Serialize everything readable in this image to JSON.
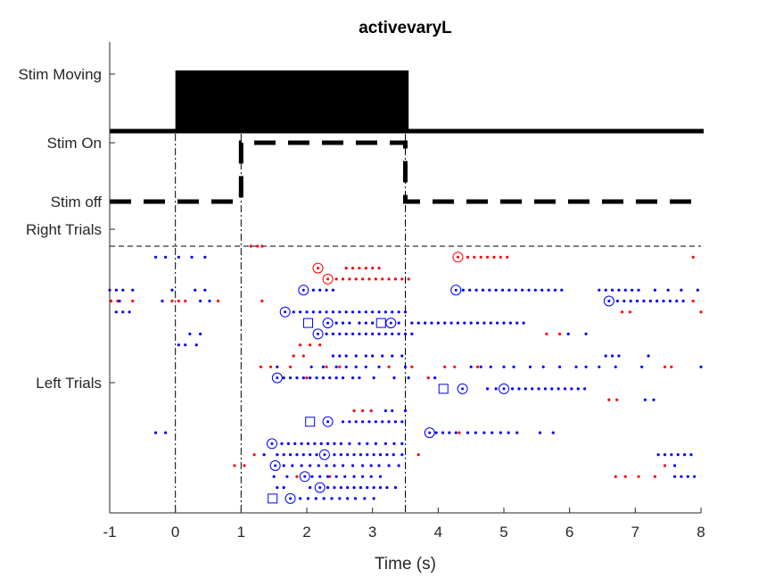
{
  "chart_data": {
    "type": "scatter",
    "title": "activevaryL",
    "xlabel": "Time (s)",
    "ylabel": "",
    "xlim": [
      -1,
      8
    ],
    "x_ticks": [
      -1,
      0,
      1,
      2,
      3,
      4,
      5,
      6,
      7,
      8
    ],
    "y_tick_labels": [
      "Stim Moving",
      "Stim On",
      "Stim off",
      "Right Trials",
      "Left Trials"
    ],
    "grid": false,
    "legend": "none",
    "colors": {
      "left_trial": "#0000ff",
      "right_trial": "#ff0000",
      "stim": "#000000"
    },
    "stim_moving_window": [
      0,
      3.55
    ],
    "stim_on_window": [
      1,
      3.5
    ],
    "event_lines": [
      0,
      1,
      3.5
    ],
    "circled_events": [
      {
        "row": 2,
        "x": 2.17,
        "color": "red"
      },
      {
        "row": 1,
        "x": 4.3,
        "color": "red"
      },
      {
        "row": 3,
        "x": 2.32,
        "color": "red"
      },
      {
        "row": 4,
        "x": 1.95,
        "color": "blue"
      },
      {
        "row": 4,
        "x": 4.27,
        "color": "blue"
      },
      {
        "row": 5,
        "x": 6.6,
        "color": "blue"
      },
      {
        "row": 6,
        "x": 1.67,
        "color": "blue"
      },
      {
        "row": 7,
        "x": 2.32,
        "color": "blue"
      },
      {
        "row": 7,
        "x": 3.28,
        "color": "blue"
      },
      {
        "row": 8,
        "x": 2.17,
        "color": "blue"
      },
      {
        "row": 12,
        "x": 1.55,
        "color": "blue"
      },
      {
        "row": 13,
        "x": 4.37,
        "color": "blue"
      },
      {
        "row": 13,
        "x": 5.0,
        "color": "blue"
      },
      {
        "row": 16,
        "x": 2.32,
        "color": "blue"
      },
      {
        "row": 17,
        "x": 3.87,
        "color": "blue"
      },
      {
        "row": 18,
        "x": 1.47,
        "color": "blue"
      },
      {
        "row": 19,
        "x": 2.27,
        "color": "blue"
      },
      {
        "row": 20,
        "x": 1.52,
        "color": "blue"
      },
      {
        "row": 21,
        "x": 1.97,
        "color": "blue"
      },
      {
        "row": 22,
        "x": 2.2,
        "color": "blue"
      },
      {
        "row": 23,
        "x": 1.75,
        "color": "blue"
      }
    ],
    "square_events": [
      {
        "row": 7,
        "x": 2.02
      },
      {
        "row": 7,
        "x": 3.13
      },
      {
        "row": 13,
        "x": 4.08
      },
      {
        "row": 16,
        "x": 2.05
      },
      {
        "row": 23,
        "x": 1.48
      }
    ],
    "rows": [
      {
        "row": 0,
        "color": "red",
        "x": [
          1.15,
          1.25,
          1.32
        ]
      },
      {
        "row": 1,
        "color": "blue",
        "x": [
          -0.3,
          -0.15,
          0.05,
          0.25,
          0.45
        ]
      },
      {
        "row": 1,
        "color": "red",
        "x": [
          4.45,
          4.55,
          4.65,
          4.75,
          4.85,
          4.95,
          5.05,
          7.88
        ]
      },
      {
        "row": 2,
        "color": "red",
        "x": [
          2.6,
          2.7,
          2.8,
          2.9,
          3.0,
          3.1
        ]
      },
      {
        "row": 3,
        "color": "red",
        "x": [
          2.45,
          2.55,
          2.65,
          2.75,
          2.85,
          2.95,
          3.05,
          3.15,
          3.25,
          3.35,
          3.45,
          3.55
        ]
      },
      {
        "row": 4,
        "color": "blue",
        "x": [
          -1.0,
          -0.9,
          -0.8,
          -0.65,
          -0.05,
          0.3,
          0.45,
          2.1,
          2.2,
          2.3,
          2.4,
          4.38,
          4.48,
          4.58,
          4.68,
          4.78,
          4.88,
          4.98,
          5.08,
          5.18,
          5.28,
          5.38,
          5.48,
          5.58,
          5.68,
          5.78,
          5.88,
          6.45,
          6.55,
          6.65,
          6.75,
          6.85,
          6.95,
          7.05,
          7.3,
          7.5,
          7.7,
          7.95
        ]
      },
      {
        "row": 5,
        "color": "red",
        "x": [
          -0.98,
          -0.88,
          -0.65,
          -0.05,
          0.05,
          0.15,
          0.65,
          1.32,
          7.88
        ]
      },
      {
        "row": 5,
        "color": "blue",
        "x": [
          -0.85,
          -0.2,
          0.38,
          0.52,
          6.73,
          6.83,
          6.93,
          7.03,
          7.13,
          7.23,
          7.33,
          7.43,
          7.53,
          7.63,
          7.73
        ]
      },
      {
        "row": 6,
        "color": "blue",
        "x": [
          1.8,
          1.9,
          2.0,
          2.1,
          2.2,
          2.3,
          2.4,
          2.5,
          2.6,
          2.7,
          2.8,
          2.9,
          3.0,
          3.1,
          3.2,
          3.3,
          3.4,
          3.5
        ]
      },
      {
        "row": 6,
        "color": "red",
        "x": [
          6.8,
          6.92,
          8.0
        ]
      },
      {
        "row": 6,
        "color": "blue",
        "x": [
          -0.9,
          -0.8,
          -0.7
        ]
      },
      {
        "row": 7,
        "color": "blue",
        "x": [
          2.45,
          2.55,
          2.65,
          2.8,
          2.9,
          3.0,
          3.4,
          3.6,
          3.7,
          3.8,
          3.9,
          4.0,
          4.1,
          4.2,
          4.3,
          4.4,
          4.5,
          4.6,
          4.7,
          4.8,
          4.9,
          5.0,
          5.1,
          5.2,
          5.3
        ]
      },
      {
        "row": 8,
        "color": "blue",
        "x": [
          0.22,
          0.38,
          2.3,
          2.4,
          2.5,
          2.6,
          2.7,
          2.8,
          2.9,
          3.0,
          3.1,
          3.2,
          3.3,
          3.4,
          3.5,
          3.6
        ]
      },
      {
        "row": 8,
        "color": "red",
        "x": [
          5.65,
          5.85
        ]
      },
      {
        "row": 8,
        "color": "blue",
        "x": [
          5.98,
          6.25
        ]
      },
      {
        "row": 9,
        "color": "red",
        "x": [
          1.9,
          2.05,
          2.2
        ]
      },
      {
        "row": 9,
        "color": "blue",
        "x": [
          0.05,
          0.15,
          0.32
        ]
      },
      {
        "row": 10,
        "color": "blue",
        "x": [
          2.4,
          2.5,
          2.6,
          2.75,
          2.9,
          3.0,
          3.15,
          3.3,
          3.45,
          6.55,
          6.65,
          6.75,
          7.2
        ]
      },
      {
        "row": 10,
        "color": "red",
        "x": [
          1.8,
          1.95
        ]
      },
      {
        "row": 11,
        "color": "red",
        "x": [
          1.3,
          1.45,
          1.75,
          2.3,
          2.5,
          3.25,
          3.6,
          4.1,
          4.25,
          4.6
        ]
      },
      {
        "row": 11,
        "color": "blue",
        "x": [
          1.55,
          2.07,
          2.25,
          2.45,
          2.6,
          2.75,
          2.9,
          3.1,
          3.5,
          4.5,
          4.65,
          4.8,
          5.0,
          5.15,
          5.4,
          5.6,
          5.85,
          6.1,
          6.25,
          6.45,
          6.7,
          7.1,
          8.0
        ]
      },
      {
        "row": 11,
        "color": "red",
        "x": [
          7.45,
          7.55
        ]
      },
      {
        "row": 12,
        "color": "blue",
        "x": [
          1.65,
          1.75,
          1.85,
          1.95,
          2.05,
          2.15,
          2.25,
          2.35,
          2.45,
          2.55,
          2.7,
          2.8,
          3.02,
          3.33,
          3.55,
          3.95
        ]
      },
      {
        "row": 12,
        "color": "red",
        "x": [
          2.0,
          3.85
        ]
      },
      {
        "row": 13,
        "color": "blue",
        "x": [
          4.75,
          4.88,
          5.13,
          5.23,
          5.33,
          5.43,
          5.53,
          5.63,
          5.73,
          5.83,
          5.93,
          6.03,
          6.13,
          6.23
        ]
      },
      {
        "row": 14,
        "color": "red",
        "x": [
          6.6,
          6.72
        ]
      },
      {
        "row": 14,
        "color": "blue",
        "x": [
          7.15,
          7.28
        ]
      },
      {
        "row": 15,
        "color": "red",
        "x": [
          2.72,
          2.85,
          2.98
        ]
      },
      {
        "row": 15,
        "color": "blue",
        "x": [
          3.2,
          3.3,
          3.5
        ]
      },
      {
        "row": 16,
        "color": "blue",
        "x": [
          2.55,
          2.65,
          2.75,
          2.85,
          2.95,
          3.05,
          3.15,
          3.25,
          3.35,
          3.45
        ]
      },
      {
        "row": 17,
        "color": "blue",
        "x": [
          -0.3,
          -0.15,
          3.97,
          4.07,
          4.17,
          4.27,
          4.45,
          4.57,
          4.7,
          4.82,
          4.95,
          5.07,
          5.2,
          5.55,
          5.75
        ]
      },
      {
        "row": 17,
        "color": "red",
        "x": [
          4.32
        ]
      },
      {
        "row": 18,
        "color": "blue",
        "x": [
          1.62,
          1.72,
          1.82,
          1.92,
          2.02,
          2.12,
          2.22,
          2.32,
          2.42,
          2.52,
          2.65,
          2.8,
          2.92,
          3.05,
          3.2,
          3.33,
          3.45
        ]
      },
      {
        "row": 19,
        "color": "red",
        "x": [
          1.2,
          3.7
        ]
      },
      {
        "row": 19,
        "color": "blue",
        "x": [
          1.35,
          1.55,
          1.65,
          1.75,
          1.85,
          1.95,
          2.05,
          2.15,
          2.42,
          2.52,
          2.62,
          2.72,
          2.82,
          2.92,
          3.02,
          3.12,
          3.22,
          3.32,
          3.45,
          7.35,
          7.45,
          7.55,
          7.65,
          7.75,
          7.85
        ]
      },
      {
        "row": 20,
        "color": "red",
        "x": [
          0.9,
          1.05,
          7.45
        ]
      },
      {
        "row": 20,
        "color": "blue",
        "x": [
          1.65,
          1.78,
          1.92,
          2.05,
          2.18,
          2.3,
          2.42,
          2.55,
          2.7,
          2.85,
          2.98,
          3.1,
          3.25,
          3.4,
          7.6
        ]
      },
      {
        "row": 21,
        "color": "red",
        "x": [
          1.85,
          2.35,
          6.7,
          6.85,
          7.05,
          7.3
        ]
      },
      {
        "row": 21,
        "color": "blue",
        "x": [
          1.5,
          1.7,
          2.08,
          2.2,
          2.32,
          2.45,
          2.58,
          2.72,
          2.85,
          2.98,
          3.12,
          7.6,
          7.7,
          7.8,
          7.9
        ]
      },
      {
        "row": 22,
        "color": "blue",
        "x": [
          1.55,
          1.65,
          2.05,
          2.32,
          2.42,
          2.52,
          2.62,
          2.72,
          2.82,
          2.92,
          3.02,
          3.12,
          3.22,
          3.35
        ]
      },
      {
        "row": 23,
        "color": "blue",
        "x": [
          1.9,
          2.02,
          2.14,
          2.26,
          2.38,
          2.5,
          2.62,
          2.74,
          2.88,
          3.02
        ]
      }
    ]
  }
}
